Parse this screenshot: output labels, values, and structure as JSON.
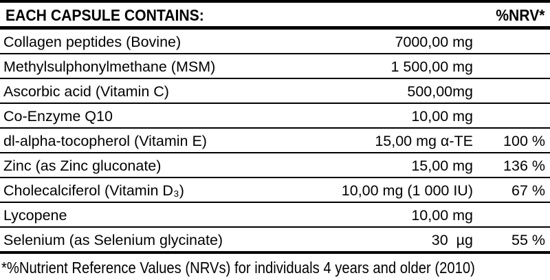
{
  "colors": {
    "background": "#ffffff",
    "text": "#000000",
    "rule": "#000000"
  },
  "table": {
    "header": {
      "title": "EACH CAPSULE CONTAINS:",
      "nrv_label": "%NRV*"
    },
    "rows": [
      {
        "name": "Collagen peptides (Bovine)",
        "amount": "7000,00 mg",
        "nrv": ""
      },
      {
        "name": "Methylsulphonylmethane (MSM)",
        "amount": "1 500,00 mg",
        "nrv": ""
      },
      {
        "name": "Ascorbic acid (Vitamin C)",
        "amount": "500,00mg",
        "nrv": ""
      },
      {
        "name": "Co-Enzyme Q10",
        "amount": "10,00 mg",
        "nrv": ""
      },
      {
        "name": "dl-alpha-tocopherol (Vitamin E)",
        "amount": "15,00 mg α-TE",
        "nrv": "100 %"
      },
      {
        "name": "Zinc (as Zinc gluconate)",
        "amount": "15,00 mg",
        "nrv": "136 %"
      },
      {
        "name": "Cholecalciferol (Vitamin D₃)",
        "amount": "10,00 mg (1 000 IU)",
        "nrv": "67 %"
      },
      {
        "name": "Lycopene",
        "amount": "10,00 mg",
        "nrv": ""
      },
      {
        "name": "Selenium (as Selenium glycinate)",
        "amount": "30  µg",
        "nrv": "55 %"
      }
    ],
    "footnote": "*%Nutrient Reference Values (NRVs) for individuals 4 years and older (2010)"
  }
}
